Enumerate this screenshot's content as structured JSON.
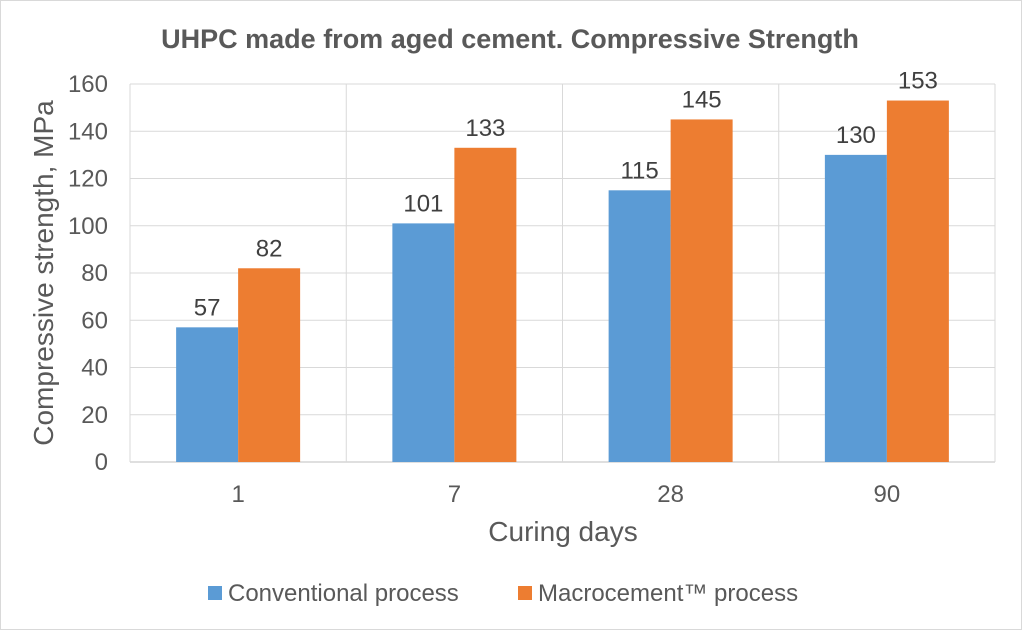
{
  "chart_data": {
    "type": "bar",
    "title": "UHPC made from aged cement. Compressive Strength",
    "xlabel": "Curing days",
    "ylabel": "Compressive strength, MPa",
    "categories": [
      "1",
      "7",
      "28",
      "90"
    ],
    "ylim": [
      0,
      160
    ],
    "yticks": [
      0,
      20,
      40,
      60,
      80,
      100,
      120,
      140,
      160
    ],
    "grid": true,
    "legend_position": "bottom",
    "series": [
      {
        "name": "Conventional process",
        "color": "#5b9bd5",
        "values": [
          57,
          101,
          115,
          130
        ]
      },
      {
        "name": "Macrocement™ process",
        "color": "#ed7d31",
        "values": [
          82,
          133,
          145,
          153
        ]
      }
    ]
  }
}
